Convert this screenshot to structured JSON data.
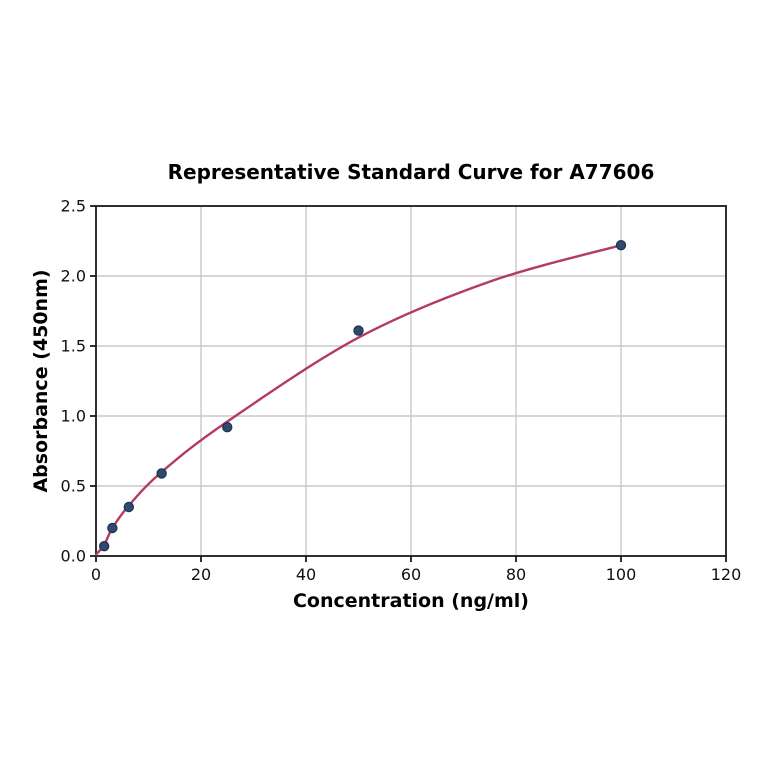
{
  "chart_data": {
    "type": "scatter",
    "title": "Representative Standard Curve for A77606",
    "xlabel": "Concentration (ng/ml)",
    "ylabel": "Absorbance (450nm)",
    "xlim": [
      0,
      120
    ],
    "ylim": [
      0,
      2.5
    ],
    "xticks": [
      0,
      20,
      40,
      60,
      80,
      100,
      120
    ],
    "xtick_labels": [
      "0",
      "20",
      "40",
      "60",
      "80",
      "100",
      "120"
    ],
    "yticks": [
      0,
      0.5,
      1.0,
      1.5,
      2.0,
      2.5
    ],
    "ytick_labels": [
      "0.0",
      "0.5",
      "1.0",
      "1.5",
      "2.0",
      "2.5"
    ],
    "grid": true,
    "series": [
      {
        "name": "standards",
        "type": "scatter",
        "points": [
          [
            1.56,
            0.07
          ],
          [
            3.12,
            0.2
          ],
          [
            6.25,
            0.35
          ],
          [
            12.5,
            0.59
          ],
          [
            25,
            0.92
          ],
          [
            50,
            1.61
          ],
          [
            100,
            2.22
          ]
        ]
      },
      {
        "name": "fit-curve",
        "type": "line",
        "points": [
          [
            0,
            0.01
          ],
          [
            1.56,
            0.08
          ],
          [
            3.12,
            0.2
          ],
          [
            6.25,
            0.36
          ],
          [
            12.5,
            0.6
          ],
          [
            25,
            0.96
          ],
          [
            50,
            1.56
          ],
          [
            75,
            1.96
          ],
          [
            100,
            2.22
          ]
        ]
      }
    ],
    "colors": {
      "curve": "#b43a66",
      "point_fill": "#2e4a6e",
      "point_edge": "#1b3450",
      "grid": "#c9c9c9",
      "spine": "#1a1a1a",
      "text": "#111111"
    }
  }
}
